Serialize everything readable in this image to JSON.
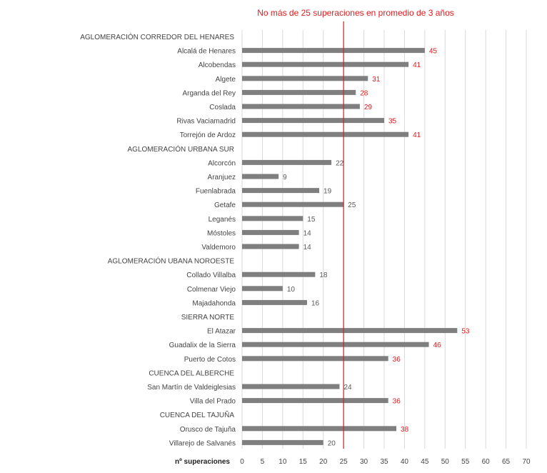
{
  "chart_data": {
    "type": "bar",
    "orientation": "horizontal",
    "annotation": "No más de 25 superaciones en promedio de 3 años",
    "xlabel": "nº superaciones",
    "xlim": [
      0,
      70
    ],
    "xticks": [
      0,
      5,
      10,
      15,
      20,
      25,
      30,
      35,
      40,
      45,
      50,
      55,
      60,
      65,
      70
    ],
    "threshold": 25,
    "grid": true,
    "colors": {
      "bar": "#7f7f7f",
      "threshold": "#e31a1c",
      "high_label": "#e31a1c",
      "normal_label": "#595959",
      "grid": "#d9d9d9"
    },
    "rows": [
      {
        "label": "AGLOMERACIÓN CORREDOR DEL HENARES",
        "header": true
      },
      {
        "label": "Alcalá de Henares",
        "value": 45
      },
      {
        "label": "Alcobendas",
        "value": 41
      },
      {
        "label": "Algete",
        "value": 31
      },
      {
        "label": "Arganda del Rey",
        "value": 28
      },
      {
        "label": "Coslada",
        "value": 29
      },
      {
        "label": "Rivas Vaciamadrid",
        "value": 35
      },
      {
        "label": "Torrejón de Ardoz",
        "value": 41
      },
      {
        "label": "AGLOMERACIÓN URBANA SUR",
        "header": true
      },
      {
        "label": "Alcorcón",
        "value": 22
      },
      {
        "label": "Aranjuez",
        "value": 9
      },
      {
        "label": "Fuenlabrada",
        "value": 19
      },
      {
        "label": "Getafe",
        "value": 25
      },
      {
        "label": "Leganés",
        "value": 15
      },
      {
        "label": "Móstoles",
        "value": 14
      },
      {
        "label": "Valdemoro",
        "value": 14
      },
      {
        "label": "AGLOMERACIÓN UBANA NOROESTE",
        "header": true
      },
      {
        "label": "Collado Villalba",
        "value": 18
      },
      {
        "label": "Colmenar Viejo",
        "value": 10
      },
      {
        "label": "Majadahonda",
        "value": 16
      },
      {
        "label": "SIERRA NORTE",
        "header": true
      },
      {
        "label": "El Atazar",
        "value": 53
      },
      {
        "label": "Guadalix de la Sierra",
        "value": 46
      },
      {
        "label": "Puerto de Cotos",
        "value": 36
      },
      {
        "label": "CUENCA DEL ALBERCHE",
        "header": true
      },
      {
        "label": "San Martín de Valdeiglesias",
        "value": 24
      },
      {
        "label": "Villa del Prado",
        "value": 36
      },
      {
        "label": "CUENCA DEL TAJUÑA",
        "header": true
      },
      {
        "label": "Orusco de Tajuña",
        "value": 38
      },
      {
        "label": "Villarejo de Salvanés",
        "value": 20
      }
    ]
  }
}
